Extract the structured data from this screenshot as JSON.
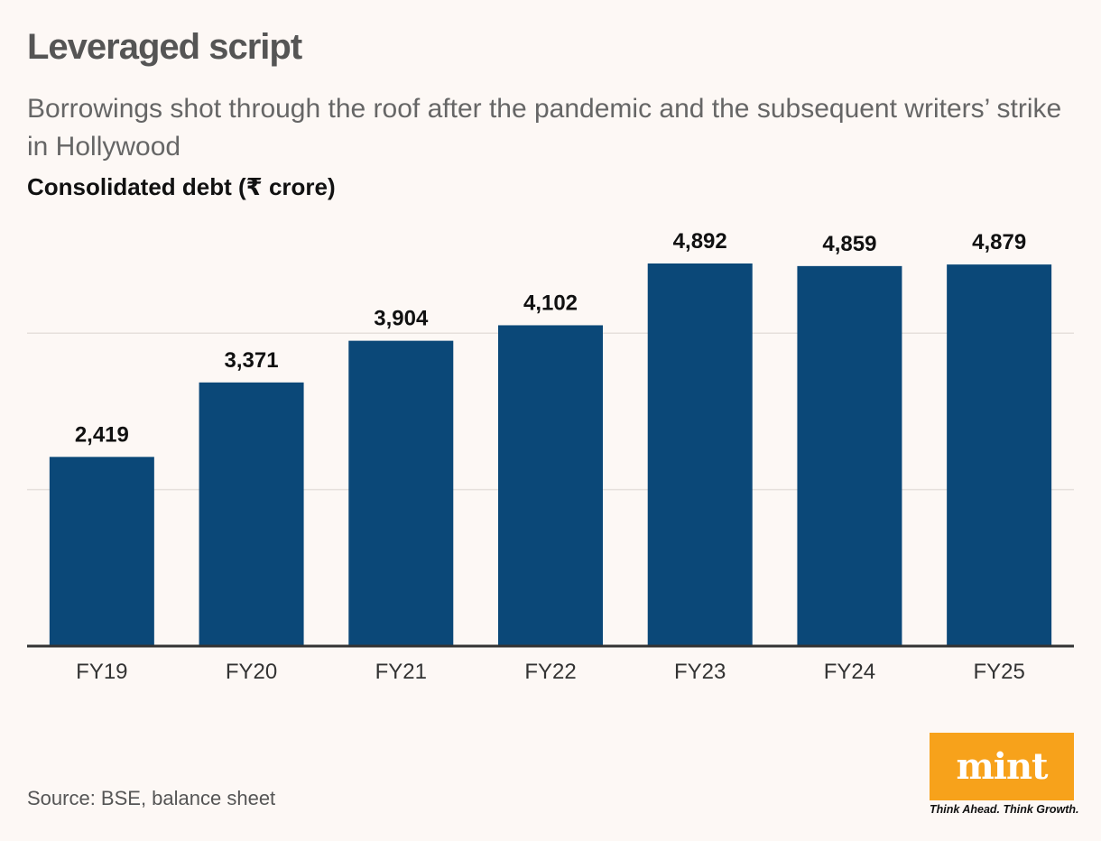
{
  "header": {
    "title": "Leveraged script",
    "subtitle": "Borrowings shot through the roof after the pandemic and the subsequent writers’ strike in Hollywood"
  },
  "footer": {
    "source": "Source: BSE, balance sheet",
    "logo_word": "mint",
    "logo_tagline": "Think Ahead. Think Growth."
  },
  "colors": {
    "bar": "#0b4878",
    "background": "#fdf8f5",
    "gridline": "#e6e0dc",
    "baseline": "#333333",
    "logo": "#f7a21b"
  },
  "chart_data": {
    "type": "bar",
    "title": "Leveraged script",
    "ylabel": "Consolidated debt (₹ crore)",
    "xlabel": "",
    "categories": [
      "FY19",
      "FY20",
      "FY21",
      "FY22",
      "FY23",
      "FY24",
      "FY25"
    ],
    "values": [
      2419,
      3371,
      3904,
      4102,
      4892,
      4859,
      4879
    ],
    "value_labels": [
      "2,419",
      "3,371",
      "3,904",
      "4,102",
      "4,892",
      "4,859",
      "4,879"
    ],
    "ylim": [
      0,
      4892
    ],
    "gridlines": [
      2000,
      4000
    ],
    "grid": true,
    "legend": "none"
  }
}
